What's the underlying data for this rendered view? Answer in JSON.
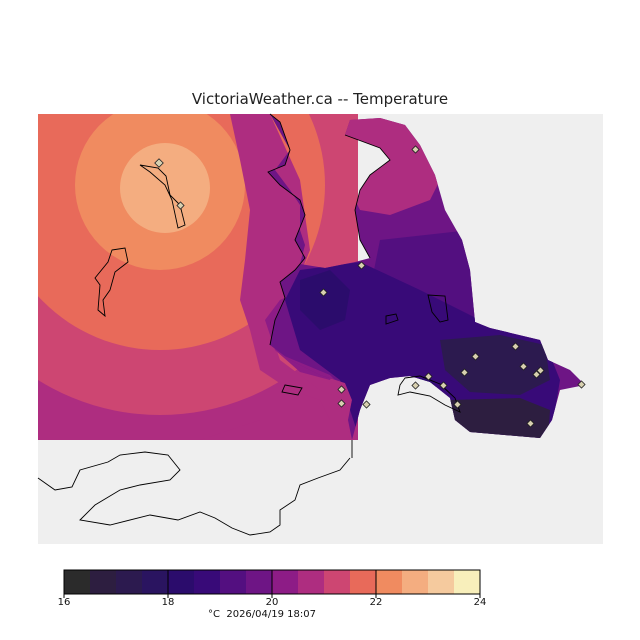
{
  "title": "VictoriaWeather.ca -- Temperature",
  "legend": {
    "colors": [
      "#2b2b2b",
      "#2d1e40",
      "#2c1a4f",
      "#2a1460",
      "#2b0c6c",
      "#380a78",
      "#530f80",
      "#6e1585",
      "#8d1c86",
      "#ae2d80",
      "#cd4672",
      "#e86a5a",
      "#f08b60",
      "#f4ad80",
      "#f5ca9e",
      "#f8efbb"
    ],
    "range": [
      16,
      24
    ],
    "tick_labels": [
      "16",
      "18",
      "20",
      "22",
      "24"
    ]
  },
  "timestamp": {
    "unit": "°C",
    "datetime": "2026/04/19 18:07"
  },
  "stations": 20
}
